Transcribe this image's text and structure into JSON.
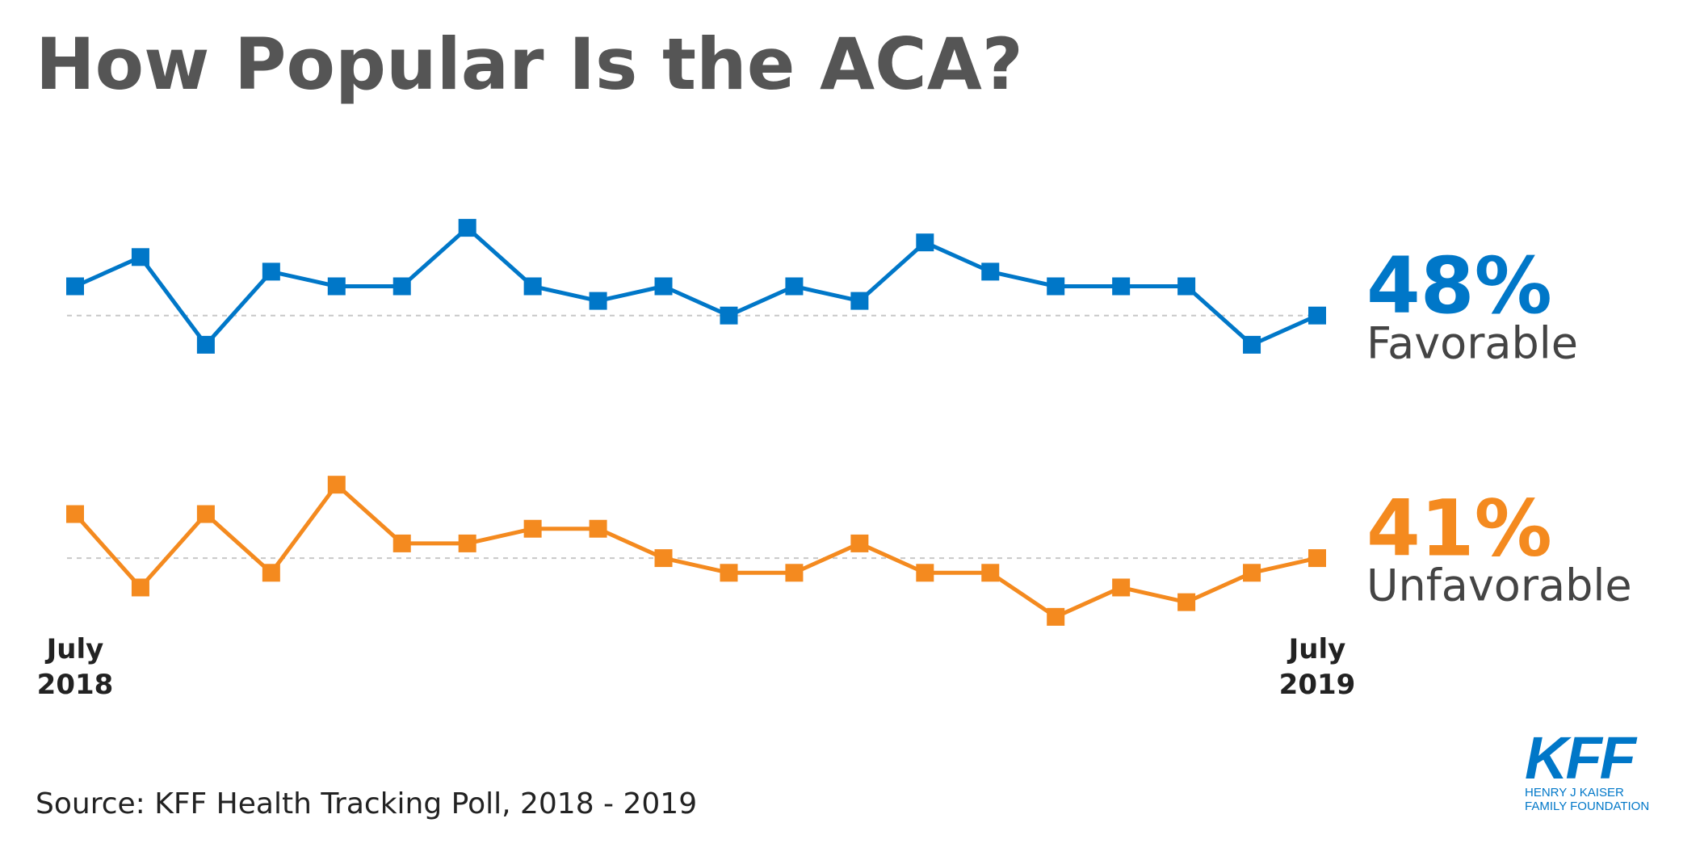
{
  "title": "How Popular Is the ACA?",
  "source": "Source: KFF Health Tracking Poll, 2018 - 2019",
  "logo": {
    "mark": "KFF",
    "line1": "HENRY J KAISER",
    "line2": "FAMILY FOUNDATION"
  },
  "chart_data": [
    {
      "type": "line",
      "categories": [
        null,
        null,
        null,
        null,
        null,
        null,
        null,
        null,
        null,
        null,
        null,
        null,
        null,
        null,
        null,
        null,
        null,
        null,
        null,
        null
      ],
      "series": [
        {
          "name": "Favorable",
          "color": "#0077c8",
          "values": [
            50,
            52,
            46,
            51,
            50,
            50,
            54,
            50,
            49,
            50,
            48,
            50,
            49,
            53,
            51,
            50,
            50,
            50,
            46,
            48
          ],
          "value_labels": [
            null,
            null,
            null,
            null,
            null,
            null,
            null,
            null,
            null,
            null,
            null,
            null,
            null,
            null,
            null,
            null,
            null,
            null,
            null,
            "48%"
          ]
        }
      ],
      "ylim": [
        45,
        55
      ]
    },
    {
      "type": "line",
      "categories": [
        "July 2018",
        null,
        null,
        null,
        null,
        null,
        null,
        null,
        null,
        null,
        null,
        null,
        null,
        null,
        null,
        null,
        null,
        null,
        null,
        "July 2019"
      ],
      "series": [
        {
          "name": "Unfavorable",
          "color": "#f48a1f",
          "values": [
            44,
            39,
            44,
            40,
            46,
            42,
            42,
            43,
            43,
            41,
            40,
            40,
            42,
            40,
            40,
            37,
            39,
            38,
            40,
            41
          ],
          "value_labels": [
            null,
            null,
            null,
            null,
            null,
            null,
            null,
            null,
            null,
            null,
            null,
            null,
            null,
            null,
            null,
            null,
            null,
            null,
            null,
            "41%"
          ]
        }
      ],
      "ylim": [
        36,
        47
      ]
    }
  ]
}
